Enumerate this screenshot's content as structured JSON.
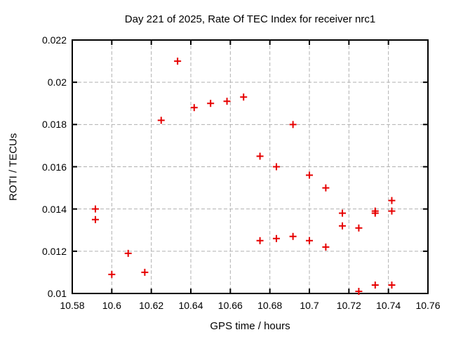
{
  "chart_data": {
    "type": "scatter",
    "title": "Day 221 of 2025, Rate Of TEC Index for receiver nrc1",
    "xlabel": "GPS time / hours",
    "ylabel": "ROTI / TECUs",
    "xlim": [
      10.58,
      10.76
    ],
    "ylim": [
      0.01,
      0.022
    ],
    "grid": "dashed",
    "legend_position": "none",
    "x_ticks": [
      {
        "v": 10.58,
        "label": "10.58"
      },
      {
        "v": 10.6,
        "label": "10.6"
      },
      {
        "v": 10.62,
        "label": "10.62"
      },
      {
        "v": 10.64,
        "label": "10.64"
      },
      {
        "v": 10.66,
        "label": "10.66"
      },
      {
        "v": 10.68,
        "label": "10.68"
      },
      {
        "v": 10.7,
        "label": "10.7"
      },
      {
        "v": 10.72,
        "label": "10.72"
      },
      {
        "v": 10.74,
        "label": "10.74"
      },
      {
        "v": 10.76,
        "label": "10.76"
      }
    ],
    "y_ticks": [
      {
        "v": 0.01,
        "label": "0.01"
      },
      {
        "v": 0.012,
        "label": "0.012"
      },
      {
        "v": 0.014,
        "label": "0.014"
      },
      {
        "v": 0.016,
        "label": "0.016"
      },
      {
        "v": 0.018,
        "label": "0.018"
      },
      {
        "v": 0.02,
        "label": "0.02"
      },
      {
        "v": 0.022,
        "label": "0.022"
      }
    ],
    "series": [
      {
        "name": "ROTI",
        "marker": "plus",
        "points": [
          [
            10.5917,
            0.014
          ],
          [
            10.5917,
            0.0135
          ],
          [
            10.6,
            0.0109
          ],
          [
            10.6083,
            0.0119
          ],
          [
            10.6167,
            0.011
          ],
          [
            10.625,
            0.0182
          ],
          [
            10.6333,
            0.021
          ],
          [
            10.6417,
            0.0188
          ],
          [
            10.65,
            0.019
          ],
          [
            10.6583,
            0.0191
          ],
          [
            10.6667,
            0.0193
          ],
          [
            10.675,
            0.0165
          ],
          [
            10.675,
            0.0125
          ],
          [
            10.6833,
            0.016
          ],
          [
            10.6833,
            0.0126
          ],
          [
            10.6917,
            0.018
          ],
          [
            10.6917,
            0.0127
          ],
          [
            10.7,
            0.0156
          ],
          [
            10.7,
            0.0125
          ],
          [
            10.7083,
            0.015
          ],
          [
            10.7083,
            0.0122
          ],
          [
            10.7167,
            0.0138
          ],
          [
            10.7167,
            0.0132
          ],
          [
            10.725,
            0.0131
          ],
          [
            10.725,
            0.0101
          ],
          [
            10.7333,
            0.0139
          ],
          [
            10.7333,
            0.0138
          ],
          [
            10.7333,
            0.0104
          ],
          [
            10.7417,
            0.0144
          ],
          [
            10.7417,
            0.0139
          ],
          [
            10.7417,
            0.0104
          ]
        ]
      }
    ],
    "colors": {
      "marker": "#e60000",
      "grid": "#b0b0b0",
      "border": "#000000",
      "background": "#ffffff",
      "text": "#000000"
    }
  }
}
